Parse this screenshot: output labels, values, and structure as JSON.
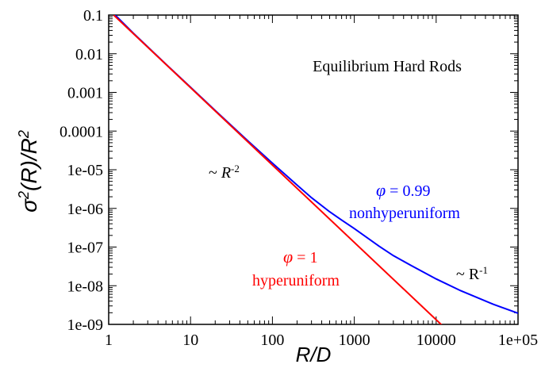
{
  "chart_data": {
    "type": "line",
    "x_scale": "log",
    "y_scale": "log",
    "xlim": [
      1,
      100000
    ],
    "ylim": [
      1e-09,
      0.1
    ],
    "xlabel": "R/D",
    "ylabel": {
      "base": "σ",
      "sup1": "2",
      "mid": "(R)/R",
      "sup2": "2"
    },
    "x_ticks": [
      {
        "value": 1,
        "label": "1"
      },
      {
        "value": 10,
        "label": "10"
      },
      {
        "value": 100,
        "label": "100"
      },
      {
        "value": 1000,
        "label": "1000"
      },
      {
        "value": 10000,
        "label": "10000"
      },
      {
        "value": 100000,
        "label": "1e+05"
      }
    ],
    "y_ticks": [
      {
        "value": 0.1,
        "label": "0.1"
      },
      {
        "value": 0.01,
        "label": "0.01"
      },
      {
        "value": 0.001,
        "label": "0.001"
      },
      {
        "value": 0.0001,
        "label": "0.0001"
      },
      {
        "value": 1e-05,
        "label": "1e-05"
      },
      {
        "value": 1e-06,
        "label": "1e-06"
      },
      {
        "value": 1e-07,
        "label": "1e-07"
      },
      {
        "value": 1e-08,
        "label": "1e-08"
      },
      {
        "value": 1e-09,
        "label": "1e-09"
      }
    ],
    "series": [
      {
        "color": "#0000ff",
        "x": [
          1.2,
          2,
          5,
          10,
          20,
          50,
          100,
          200,
          300,
          500,
          700,
          1000,
          2000,
          3000,
          5000,
          10000,
          20000,
          50000,
          100000
        ],
        "y": [
          0.1,
          0.034,
          0.0054,
          0.00136,
          0.00034,
          5.6e-05,
          1.48e-05,
          4e-06,
          1.9e-06,
          8.2e-07,
          5e-07,
          3e-07,
          1.06e-07,
          6e-08,
          3.3e-08,
          1.5e-08,
          7.4e-09,
          3.3e-09,
          1.95e-09
        ]
      },
      {
        "color": "#ff0000",
        "x": [
          1.15,
          13000
        ],
        "y": [
          0.1,
          7.8e-10
        ]
      }
    ],
    "annotations": {
      "title_note": "Equilibrium Hard Rods",
      "slope2": {
        "prefix": "~ ",
        "var": "R",
        "exp": "-2"
      },
      "slope1": {
        "prefix": "~ R",
        "exp": "-1"
      },
      "blue_phi": {
        "sym": "φ",
        "eq": " = 0.99"
      },
      "blue_label": "nonhyperuniform",
      "red_phi": {
        "sym": "φ",
        "eq": " = 1"
      },
      "red_label": "hyperuniform"
    }
  }
}
